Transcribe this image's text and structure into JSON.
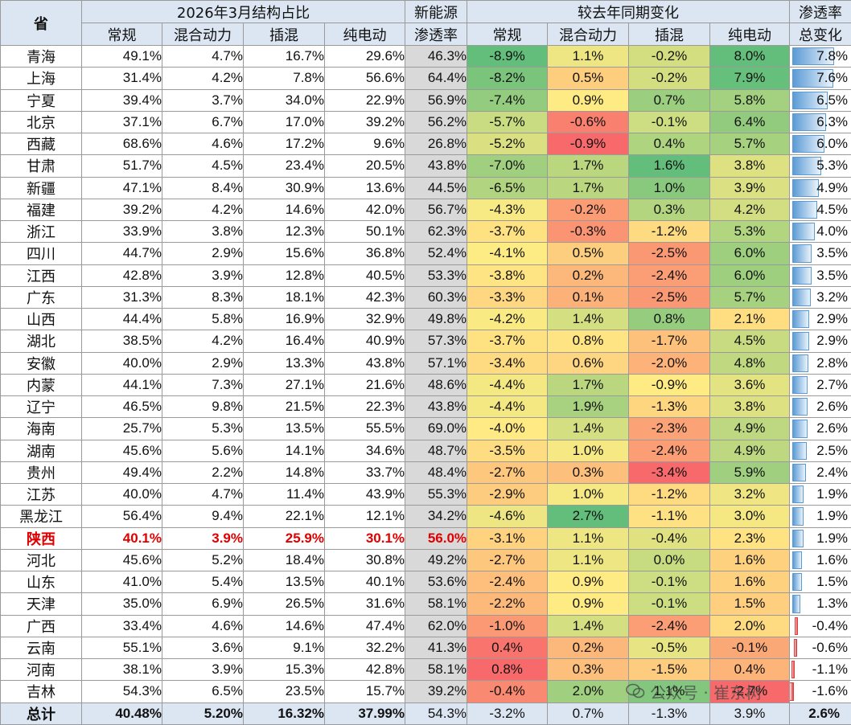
{
  "header": {
    "province": "省",
    "group_structure": "2026年3月结构占比",
    "group_nev_line1": "新能源",
    "group_nev_line2": "渗透率",
    "group_yoy": "较去年同期变化",
    "group_pen_line1": "渗透率",
    "group_pen_line2": "总变化",
    "sub_conventional": "常规",
    "sub_hybrid": "混合动力",
    "sub_phev": "插混",
    "sub_bev": "纯电动"
  },
  "rows": [
    {
      "province": "青海",
      "conventional": "49.1%",
      "hybrid": "4.7%",
      "phev": "16.7%",
      "bev": "29.6%",
      "nev_pen": "46.3%",
      "d_conventional": "-8.9%",
      "d_hybrid": "1.1%",
      "d_phev": "-0.2%",
      "d_bev": "8.0%",
      "d_pen": "7.8%"
    },
    {
      "province": "上海",
      "conventional": "31.4%",
      "hybrid": "4.2%",
      "phev": "7.8%",
      "bev": "56.6%",
      "nev_pen": "64.4%",
      "d_conventional": "-8.2%",
      "d_hybrid": "0.5%",
      "d_phev": "-0.2%",
      "d_bev": "7.9%",
      "d_pen": "7.6%"
    },
    {
      "province": "宁夏",
      "conventional": "39.4%",
      "hybrid": "3.7%",
      "phev": "34.0%",
      "bev": "22.9%",
      "nev_pen": "56.9%",
      "d_conventional": "-7.4%",
      "d_hybrid": "0.9%",
      "d_phev": "0.7%",
      "d_bev": "5.8%",
      "d_pen": "6.5%"
    },
    {
      "province": "北京",
      "conventional": "37.1%",
      "hybrid": "6.7%",
      "phev": "17.0%",
      "bev": "39.2%",
      "nev_pen": "56.2%",
      "d_conventional": "-5.7%",
      "d_hybrid": "-0.6%",
      "d_phev": "-0.1%",
      "d_bev": "6.4%",
      "d_pen": "6.3%"
    },
    {
      "province": "西藏",
      "conventional": "68.6%",
      "hybrid": "4.6%",
      "phev": "17.2%",
      "bev": "9.6%",
      "nev_pen": "26.8%",
      "d_conventional": "-5.2%",
      "d_hybrid": "-0.9%",
      "d_phev": "0.4%",
      "d_bev": "5.7%",
      "d_pen": "6.0%"
    },
    {
      "province": "甘肃",
      "conventional": "51.7%",
      "hybrid": "4.5%",
      "phev": "23.4%",
      "bev": "20.5%",
      "nev_pen": "43.8%",
      "d_conventional": "-7.0%",
      "d_hybrid": "1.7%",
      "d_phev": "1.6%",
      "d_bev": "3.8%",
      "d_pen": "5.3%"
    },
    {
      "province": "新疆",
      "conventional": "47.1%",
      "hybrid": "8.4%",
      "phev": "30.9%",
      "bev": "13.6%",
      "nev_pen": "44.5%",
      "d_conventional": "-6.5%",
      "d_hybrid": "1.7%",
      "d_phev": "1.0%",
      "d_bev": "3.9%",
      "d_pen": "4.9%"
    },
    {
      "province": "福建",
      "conventional": "39.2%",
      "hybrid": "4.2%",
      "phev": "14.6%",
      "bev": "42.0%",
      "nev_pen": "56.7%",
      "d_conventional": "-4.3%",
      "d_hybrid": "-0.2%",
      "d_phev": "0.3%",
      "d_bev": "4.2%",
      "d_pen": "4.5%"
    },
    {
      "province": "浙江",
      "conventional": "33.9%",
      "hybrid": "3.8%",
      "phev": "12.3%",
      "bev": "50.1%",
      "nev_pen": "62.3%",
      "d_conventional": "-3.7%",
      "d_hybrid": "-0.3%",
      "d_phev": "-1.2%",
      "d_bev": "5.3%",
      "d_pen": "4.0%"
    },
    {
      "province": "四川",
      "conventional": "44.7%",
      "hybrid": "2.9%",
      "phev": "15.6%",
      "bev": "36.8%",
      "nev_pen": "52.4%",
      "d_conventional": "-4.1%",
      "d_hybrid": "0.5%",
      "d_phev": "-2.5%",
      "d_bev": "6.0%",
      "d_pen": "3.5%"
    },
    {
      "province": "江西",
      "conventional": "42.8%",
      "hybrid": "3.9%",
      "phev": "12.8%",
      "bev": "40.5%",
      "nev_pen": "53.3%",
      "d_conventional": "-3.8%",
      "d_hybrid": "0.2%",
      "d_phev": "-2.4%",
      "d_bev": "6.0%",
      "d_pen": "3.5%"
    },
    {
      "province": "广东",
      "conventional": "31.3%",
      "hybrid": "8.3%",
      "phev": "18.1%",
      "bev": "42.3%",
      "nev_pen": "60.3%",
      "d_conventional": "-3.3%",
      "d_hybrid": "0.1%",
      "d_phev": "-2.5%",
      "d_bev": "5.7%",
      "d_pen": "3.2%"
    },
    {
      "province": "山西",
      "conventional": "44.4%",
      "hybrid": "5.8%",
      "phev": "16.9%",
      "bev": "32.9%",
      "nev_pen": "49.8%",
      "d_conventional": "-4.2%",
      "d_hybrid": "1.4%",
      "d_phev": "0.8%",
      "d_bev": "2.1%",
      "d_pen": "2.9%"
    },
    {
      "province": "湖北",
      "conventional": "38.5%",
      "hybrid": "4.2%",
      "phev": "16.4%",
      "bev": "40.9%",
      "nev_pen": "57.3%",
      "d_conventional": "-3.7%",
      "d_hybrid": "0.8%",
      "d_phev": "-1.7%",
      "d_bev": "4.5%",
      "d_pen": "2.9%"
    },
    {
      "province": "安徽",
      "conventional": "40.0%",
      "hybrid": "2.9%",
      "phev": "13.3%",
      "bev": "43.8%",
      "nev_pen": "57.1%",
      "d_conventional": "-3.4%",
      "d_hybrid": "0.6%",
      "d_phev": "-2.0%",
      "d_bev": "4.8%",
      "d_pen": "2.8%"
    },
    {
      "province": "内蒙",
      "conventional": "44.1%",
      "hybrid": "7.3%",
      "phev": "27.1%",
      "bev": "21.6%",
      "nev_pen": "48.6%",
      "d_conventional": "-4.4%",
      "d_hybrid": "1.7%",
      "d_phev": "-0.9%",
      "d_bev": "3.6%",
      "d_pen": "2.7%"
    },
    {
      "province": "辽宁",
      "conventional": "46.5%",
      "hybrid": "9.8%",
      "phev": "21.5%",
      "bev": "22.3%",
      "nev_pen": "43.8%",
      "d_conventional": "-4.4%",
      "d_hybrid": "1.9%",
      "d_phev": "-1.3%",
      "d_bev": "3.8%",
      "d_pen": "2.6%"
    },
    {
      "province": "海南",
      "conventional": "25.7%",
      "hybrid": "5.3%",
      "phev": "13.5%",
      "bev": "55.5%",
      "nev_pen": "69.0%",
      "d_conventional": "-4.0%",
      "d_hybrid": "1.4%",
      "d_phev": "-2.3%",
      "d_bev": "4.9%",
      "d_pen": "2.6%"
    },
    {
      "province": "湖南",
      "conventional": "45.6%",
      "hybrid": "5.6%",
      "phev": "14.1%",
      "bev": "34.6%",
      "nev_pen": "48.7%",
      "d_conventional": "-3.5%",
      "d_hybrid": "1.0%",
      "d_phev": "-2.4%",
      "d_bev": "4.9%",
      "d_pen": "2.5%"
    },
    {
      "province": "贵州",
      "conventional": "49.4%",
      "hybrid": "2.2%",
      "phev": "14.8%",
      "bev": "33.7%",
      "nev_pen": "48.4%",
      "d_conventional": "-2.7%",
      "d_hybrid": "0.3%",
      "d_phev": "-3.4%",
      "d_bev": "5.9%",
      "d_pen": "2.4%"
    },
    {
      "province": "江苏",
      "conventional": "40.0%",
      "hybrid": "4.7%",
      "phev": "11.4%",
      "bev": "43.9%",
      "nev_pen": "55.3%",
      "d_conventional": "-2.9%",
      "d_hybrid": "1.0%",
      "d_phev": "-1.2%",
      "d_bev": "3.2%",
      "d_pen": "1.9%"
    },
    {
      "province": "黑龙江",
      "conventional": "56.4%",
      "hybrid": "9.4%",
      "phev": "22.1%",
      "bev": "12.1%",
      "nev_pen": "34.2%",
      "d_conventional": "-4.6%",
      "d_hybrid": "2.7%",
      "d_phev": "-1.1%",
      "d_bev": "3.0%",
      "d_pen": "1.9%"
    },
    {
      "province": "陕西",
      "conventional": "40.1%",
      "hybrid": "3.9%",
      "phev": "25.9%",
      "bev": "30.1%",
      "nev_pen": "56.0%",
      "d_conventional": "-3.1%",
      "d_hybrid": "1.1%",
      "d_phev": "-0.4%",
      "d_bev": "2.3%",
      "d_pen": "1.9%",
      "highlight": true
    },
    {
      "province": "河北",
      "conventional": "45.6%",
      "hybrid": "5.2%",
      "phev": "18.4%",
      "bev": "30.8%",
      "nev_pen": "49.2%",
      "d_conventional": "-2.7%",
      "d_hybrid": "1.1%",
      "d_phev": "0.0%",
      "d_bev": "1.6%",
      "d_pen": "1.6%"
    },
    {
      "province": "山东",
      "conventional": "41.0%",
      "hybrid": "5.4%",
      "phev": "13.5%",
      "bev": "40.1%",
      "nev_pen": "53.6%",
      "d_conventional": "-2.4%",
      "d_hybrid": "0.9%",
      "d_phev": "-0.1%",
      "d_bev": "1.6%",
      "d_pen": "1.5%"
    },
    {
      "province": "天津",
      "conventional": "35.0%",
      "hybrid": "6.9%",
      "phev": "26.5%",
      "bev": "31.6%",
      "nev_pen": "58.1%",
      "d_conventional": "-2.2%",
      "d_hybrid": "0.9%",
      "d_phev": "-0.1%",
      "d_bev": "1.5%",
      "d_pen": "1.3%"
    },
    {
      "province": "广西",
      "conventional": "33.4%",
      "hybrid": "4.6%",
      "phev": "14.6%",
      "bev": "47.4%",
      "nev_pen": "62.0%",
      "d_conventional": "-1.0%",
      "d_hybrid": "1.4%",
      "d_phev": "-2.4%",
      "d_bev": "2.0%",
      "d_pen": "-0.4%"
    },
    {
      "province": "云南",
      "conventional": "55.1%",
      "hybrid": "3.6%",
      "phev": "9.1%",
      "bev": "32.2%",
      "nev_pen": "41.3%",
      "d_conventional": "0.4%",
      "d_hybrid": "0.2%",
      "d_phev": "-0.5%",
      "d_bev": "-0.1%",
      "d_pen": "-0.6%"
    },
    {
      "province": "河南",
      "conventional": "38.1%",
      "hybrid": "3.9%",
      "phev": "15.3%",
      "bev": "42.8%",
      "nev_pen": "58.1%",
      "d_conventional": "0.8%",
      "d_hybrid": "0.3%",
      "d_phev": "-1.5%",
      "d_bev": "0.4%",
      "d_pen": "-1.1%"
    },
    {
      "province": "吉林",
      "conventional": "54.3%",
      "hybrid": "6.5%",
      "phev": "23.5%",
      "bev": "15.7%",
      "nev_pen": "39.2%",
      "d_conventional": "-0.4%",
      "d_hybrid": "2.0%",
      "d_phev": "1.1%",
      "d_bev": "-2.7%",
      "d_pen": "-1.6%"
    }
  ],
  "total": {
    "province": "总计",
    "conventional": "40.48%",
    "hybrid": "5.20%",
    "phev": "16.32%",
    "bev": "37.99%",
    "nev_pen": "54.3%",
    "d_conventional": "-3.2%",
    "d_hybrid": "0.7%",
    "d_phev": "-1.3%",
    "d_bev": "3.9%",
    "d_pen": "2.6%"
  },
  "watermark": {
    "text": "公众号 · 崔东树"
  },
  "colors": {
    "header_bg": "#dce6f2",
    "nev_bg": "#d9d9d9",
    "highlight_text": "#e00000",
    "pos_bar": "#5b9bd5",
    "neg_bar": "#e04040",
    "scale_green": "#63be7b",
    "scale_yellow": "#ffeb84",
    "scale_red": "#f8696b"
  }
}
